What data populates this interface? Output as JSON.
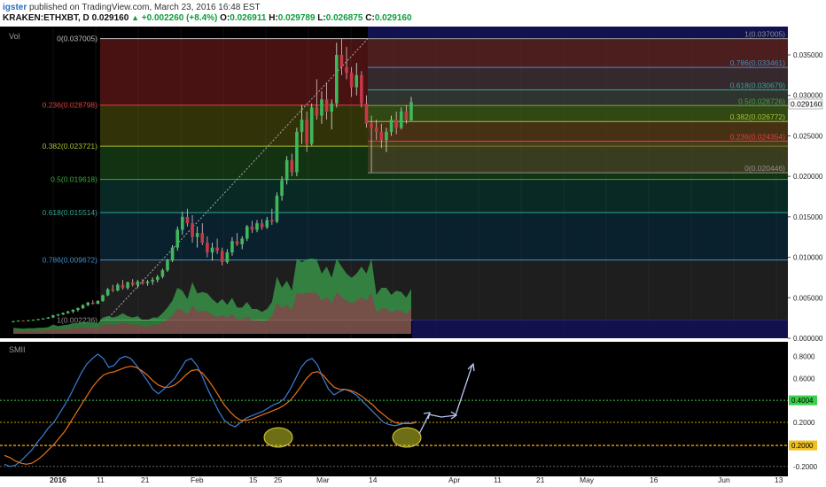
{
  "header": {
    "user": "igster",
    "published": "published on TradingView.com, March 23, 2016 16:48 EST",
    "symbol": "KRAKEN:ETHXBT, D",
    "price": "0.029160",
    "change": "+0.002260 (+8.4%)",
    "ohlc": {
      "o_label": "O:",
      "o": "0.026911",
      "h_label": "H:",
      "h": "0.029789",
      "l_label": "L:",
      "l": "0.026875",
      "c_label": "C:",
      "c": "0.029160"
    }
  },
  "main_pane": {
    "label": "Vol",
    "last_price_tag": "0.029160"
  },
  "sub_pane": {
    "label": "SMII"
  },
  "colors": {
    "background": "#000000",
    "up": "#2e9e48",
    "down": "#b8323e",
    "smi": "#3b7dd8",
    "signal": "#e8721c",
    "grid": "#1a1a1a"
  },
  "chart_data": [
    {
      "type": "candlestick",
      "title": "",
      "y_axis_ticks": [
        "0.035000",
        "0.030000",
        "0.025000",
        "0.020000",
        "0.015000",
        "0.010000",
        "0.005000",
        "0.000000"
      ],
      "ylim": [
        0.0,
        0.0385
      ],
      "x_ticks": [
        "2016",
        "11",
        "21",
        "Feb",
        "15",
        "25",
        "Mar",
        "14",
        "Apr",
        "11",
        "21",
        "May",
        "16",
        "Jun",
        "13"
      ],
      "fib_retracement_major": [
        {
          "label": "0(0.037005)",
          "value": 0.037005,
          "color": "#c0c0c0"
        },
        {
          "label": "0.236(0.028798)",
          "value": 0.028798,
          "color": "#e04040"
        },
        {
          "label": "0.382(0.023721)",
          "value": 0.023721,
          "color": "#a8c030"
        },
        {
          "label": "0.5(0.019618)",
          "value": 0.019618,
          "color": "#3aaa3a"
        },
        {
          "label": "0.618(0.015514)",
          "value": 0.015514,
          "color": "#30a898"
        },
        {
          "label": "0.786(0.009672)",
          "value": 0.009672,
          "color": "#4090c8"
        },
        {
          "label": "1(0.002236)",
          "value": 0.002236,
          "color": "#909090"
        }
      ],
      "fib_retracement_minor": [
        {
          "label": "1(0.037005)",
          "value": 0.037005,
          "color": "#909090"
        },
        {
          "label": "0.786(0.033461)",
          "value": 0.033461,
          "color": "#4090c8"
        },
        {
          "label": "0.618(0.030679)",
          "value": 0.030679,
          "color": "#30a898"
        },
        {
          "label": "0.5(0.028726)",
          "value": 0.028726,
          "color": "#3aaa3a"
        },
        {
          "label": "0.382(0.026772)",
          "value": 0.026772,
          "color": "#a8c030"
        },
        {
          "label": "0.236(0.024354)",
          "value": 0.024354,
          "color": "#e04040"
        },
        {
          "label": "0(0.020446)",
          "value": 0.020446,
          "color": "#909090"
        }
      ],
      "last_price": 0.02916,
      "candles_ohlc": [
        [
          0.00205,
          0.00215,
          0.00198,
          0.0021
        ],
        [
          0.0021,
          0.0022,
          0.00205,
          0.00218
        ],
        [
          0.00218,
          0.00222,
          0.0021,
          0.00214
        ],
        [
          0.00214,
          0.00225,
          0.0021,
          0.00222
        ],
        [
          0.00222,
          0.00232,
          0.00218,
          0.00228
        ],
        [
          0.00228,
          0.0024,
          0.00222,
          0.00236
        ],
        [
          0.00236,
          0.00248,
          0.0023,
          0.00244
        ],
        [
          0.00244,
          0.00262,
          0.0024,
          0.00258
        ],
        [
          0.00258,
          0.0029,
          0.0025,
          0.00282
        ],
        [
          0.00282,
          0.003,
          0.0027,
          0.00295
        ],
        [
          0.00295,
          0.0032,
          0.00285,
          0.00312
        ],
        [
          0.00312,
          0.0034,
          0.003,
          0.0033
        ],
        [
          0.0033,
          0.0036,
          0.0031,
          0.0035
        ],
        [
          0.0035,
          0.0038,
          0.0033,
          0.00372
        ],
        [
          0.00372,
          0.0042,
          0.0036,
          0.0041
        ],
        [
          0.0041,
          0.0045,
          0.00395,
          0.0044
        ],
        [
          0.0044,
          0.0047,
          0.00415,
          0.00425
        ],
        [
          0.00425,
          0.0047,
          0.0042,
          0.0046
        ],
        [
          0.0046,
          0.0054,
          0.0045,
          0.0053
        ],
        [
          0.0053,
          0.0062,
          0.0052,
          0.00605
        ],
        [
          0.00605,
          0.0066,
          0.0057,
          0.0059
        ],
        [
          0.0059,
          0.0068,
          0.0058,
          0.0066
        ],
        [
          0.0066,
          0.0072,
          0.006,
          0.0062
        ],
        [
          0.0062,
          0.007,
          0.006,
          0.0069
        ],
        [
          0.0069,
          0.0073,
          0.0064,
          0.0066
        ],
        [
          0.0066,
          0.0072,
          0.0062,
          0.007
        ],
        [
          0.007,
          0.0073,
          0.0066,
          0.0068
        ],
        [
          0.0068,
          0.0072,
          0.0065,
          0.007
        ],
        [
          0.007,
          0.0075,
          0.0066,
          0.0072
        ],
        [
          0.0072,
          0.0078,
          0.0069,
          0.0076
        ],
        [
          0.0076,
          0.0086,
          0.0074,
          0.0084
        ],
        [
          0.0084,
          0.0098,
          0.0082,
          0.0096
        ],
        [
          0.0096,
          0.0115,
          0.0094,
          0.0112
        ],
        [
          0.0112,
          0.0138,
          0.0108,
          0.0134
        ],
        [
          0.0134,
          0.0156,
          0.0128,
          0.015
        ],
        [
          0.015,
          0.016,
          0.0138,
          0.0142
        ],
        [
          0.0142,
          0.0152,
          0.0118,
          0.0125
        ],
        [
          0.0125,
          0.0138,
          0.0112,
          0.013
        ],
        [
          0.013,
          0.0142,
          0.0115,
          0.0118
        ],
        [
          0.0118,
          0.0126,
          0.01,
          0.0106
        ],
        [
          0.0106,
          0.0118,
          0.0096,
          0.0112
        ],
        [
          0.0112,
          0.0123,
          0.0104,
          0.0108
        ],
        [
          0.0108,
          0.0112,
          0.009,
          0.0094
        ],
        [
          0.0094,
          0.011,
          0.0092,
          0.0106
        ],
        [
          0.0106,
          0.0125,
          0.0102,
          0.012
        ],
        [
          0.012,
          0.013,
          0.0114,
          0.0116
        ],
        [
          0.0116,
          0.0126,
          0.011,
          0.0123
        ],
        [
          0.0123,
          0.014,
          0.012,
          0.0138
        ],
        [
          0.0138,
          0.0145,
          0.013,
          0.0134
        ],
        [
          0.0134,
          0.0146,
          0.0131,
          0.0142
        ],
        [
          0.0142,
          0.0147,
          0.0134,
          0.0137
        ],
        [
          0.0137,
          0.015,
          0.0135,
          0.0146
        ],
        [
          0.0146,
          0.016,
          0.014,
          0.0144
        ],
        [
          0.0144,
          0.018,
          0.0142,
          0.0176
        ],
        [
          0.0176,
          0.02,
          0.017,
          0.0195
        ],
        [
          0.0195,
          0.0225,
          0.019,
          0.022
        ],
        [
          0.022,
          0.0228,
          0.02,
          0.0205
        ],
        [
          0.0205,
          0.026,
          0.02,
          0.0255
        ],
        [
          0.0255,
          0.0288,
          0.024,
          0.027
        ],
        [
          0.027,
          0.028,
          0.023,
          0.024
        ],
        [
          0.024,
          0.029,
          0.0238,
          0.0285
        ],
        [
          0.0285,
          0.032,
          0.027,
          0.0275
        ],
        [
          0.0275,
          0.0305,
          0.0265,
          0.0295
        ],
        [
          0.0295,
          0.0315,
          0.027,
          0.028
        ],
        [
          0.028,
          0.0295,
          0.0258,
          0.029
        ],
        [
          0.029,
          0.0365,
          0.0285,
          0.035
        ],
        [
          0.035,
          0.037,
          0.0325,
          0.0335
        ],
        [
          0.0335,
          0.036,
          0.032,
          0.0328
        ],
        [
          0.0328,
          0.0335,
          0.0298,
          0.031
        ],
        [
          0.031,
          0.034,
          0.03,
          0.0325
        ],
        [
          0.0325,
          0.033,
          0.0285,
          0.029
        ],
        [
          0.029,
          0.03,
          0.026,
          0.0265
        ],
        [
          0.0265,
          0.0275,
          0.0205,
          0.026
        ],
        [
          0.026,
          0.027,
          0.0245,
          0.0255
        ],
        [
          0.0255,
          0.0265,
          0.0235,
          0.0245
        ],
        [
          0.0245,
          0.026,
          0.023,
          0.0255
        ],
        [
          0.0255,
          0.0275,
          0.025,
          0.027
        ],
        [
          0.027,
          0.028,
          0.0252,
          0.026
        ],
        [
          0.026,
          0.0285,
          0.0258,
          0.028
        ],
        [
          0.028,
          0.0288,
          0.0265,
          0.027
        ],
        [
          0.0269,
          0.0298,
          0.02687,
          0.02916
        ]
      ]
    },
    {
      "type": "line",
      "title": "",
      "y_axis_ticks": [
        "0.8000",
        "0.6000",
        "0.4000",
        "0.2000",
        "-0.2000"
      ],
      "ylim": [
        -0.25,
        0.9
      ],
      "reference_lines": [
        0.4004,
        0.2
      ],
      "tags": [
        "0.4004",
        "0.2000"
      ],
      "series": [
        {
          "name": "",
          "color": "#3b7dd8",
          "values": [
            -0.18,
            -0.2,
            -0.19,
            -0.15,
            -0.1,
            -0.05,
            0.02,
            0.08,
            0.15,
            0.2,
            0.28,
            0.36,
            0.45,
            0.55,
            0.65,
            0.73,
            0.78,
            0.82,
            0.78,
            0.7,
            0.72,
            0.78,
            0.8,
            0.78,
            0.72,
            0.65,
            0.58,
            0.5,
            0.46,
            0.5,
            0.55,
            0.6,
            0.68,
            0.76,
            0.78,
            0.72,
            0.62,
            0.5,
            0.4,
            0.3,
            0.22,
            0.18,
            0.16,
            0.2,
            0.24,
            0.26,
            0.28,
            0.3,
            0.33,
            0.36,
            0.38,
            0.42,
            0.5,
            0.6,
            0.7,
            0.76,
            0.78,
            0.72,
            0.6,
            0.5,
            0.45,
            0.48,
            0.5,
            0.48,
            0.45,
            0.4,
            0.35,
            0.3,
            0.25,
            0.2,
            0.18,
            0.17,
            0.18,
            0.2,
            0.19,
            0.21
          ]
        },
        {
          "name": "",
          "color": "#e8721c",
          "values": [
            -0.1,
            -0.12,
            -0.15,
            -0.17,
            -0.18,
            -0.17,
            -0.14,
            -0.1,
            -0.05,
            0.0,
            0.06,
            0.12,
            0.2,
            0.28,
            0.36,
            0.44,
            0.52,
            0.58,
            0.63,
            0.65,
            0.66,
            0.68,
            0.7,
            0.71,
            0.7,
            0.67,
            0.63,
            0.58,
            0.54,
            0.52,
            0.52,
            0.54,
            0.58,
            0.63,
            0.67,
            0.68,
            0.65,
            0.59,
            0.52,
            0.44,
            0.36,
            0.3,
            0.25,
            0.22,
            0.22,
            0.23,
            0.25,
            0.27,
            0.29,
            0.31,
            0.33,
            0.36,
            0.4,
            0.46,
            0.53,
            0.6,
            0.65,
            0.66,
            0.63,
            0.57,
            0.52,
            0.5,
            0.5,
            0.49,
            0.47,
            0.44,
            0.4,
            0.36,
            0.31,
            0.27,
            0.23,
            0.2,
            0.19,
            0.19,
            0.19,
            0.2
          ]
        }
      ]
    }
  ]
}
